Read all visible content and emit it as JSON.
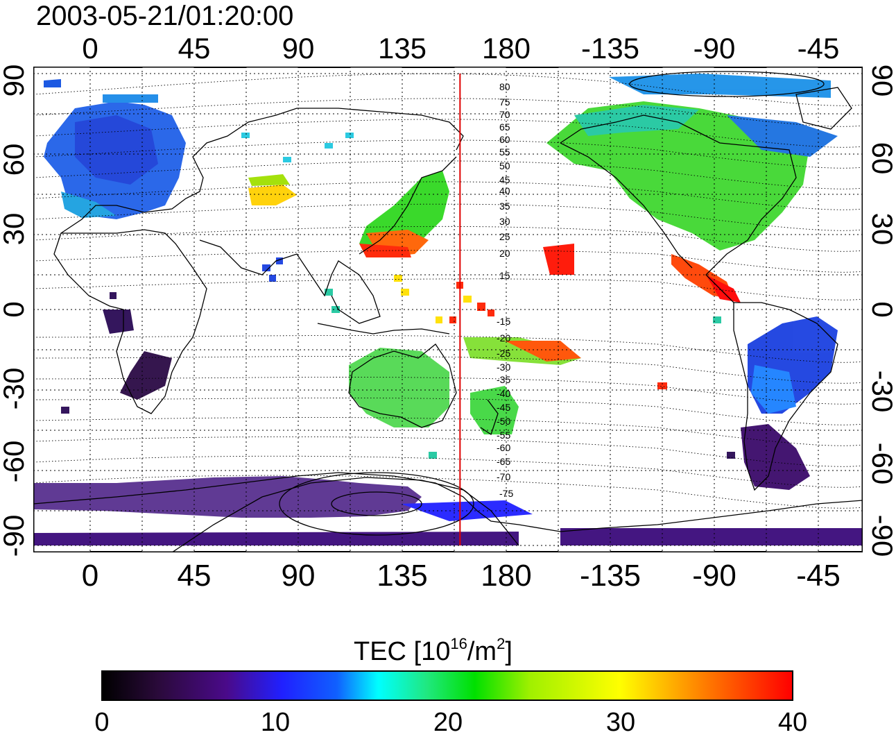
{
  "timestamp": "2003-05-21/01:20:00",
  "axes": {
    "top_ticks": [
      "0",
      "45",
      "90",
      "135",
      "180",
      "-135",
      "-90",
      "-45"
    ],
    "bottom_ticks": [
      "0",
      "45",
      "90",
      "135",
      "180",
      "-135",
      "-90",
      "-45"
    ],
    "left_ticks": [
      "90",
      "60",
      "30",
      "0",
      "-30",
      "-60",
      "-90"
    ],
    "right_ticks": [
      "90",
      "60",
      "30",
      "0",
      "-30",
      "-60",
      "-90"
    ]
  },
  "contour_labels": {
    "north": [
      "80",
      "75",
      "70",
      "65",
      "60",
      "55",
      "50",
      "45",
      "40",
      "35",
      "30",
      "25",
      "20",
      "15"
    ],
    "south": [
      "-15",
      "-20",
      "-25",
      "-30",
      "-35",
      "-40",
      "-45",
      "-50",
      "-55",
      "-60",
      "-65",
      "-70",
      "-75"
    ]
  },
  "colorbar": {
    "label_main": "TEC  [10",
    "label_exp1": "16",
    "label_mid": "/m",
    "label_exp2": "2",
    "label_end": "]",
    "ticks": [
      "0",
      "10",
      "20",
      "30",
      "40"
    ],
    "range": [
      0,
      40
    ],
    "colormap": [
      "#000000",
      "#4a0a8a",
      "#2020ff",
      "#00ffff",
      "#00e000",
      "#ffff00",
      "#ff8000",
      "#ff0000"
    ]
  },
  "terminator_longitude": 160,
  "terminator_color": "#e00000"
}
